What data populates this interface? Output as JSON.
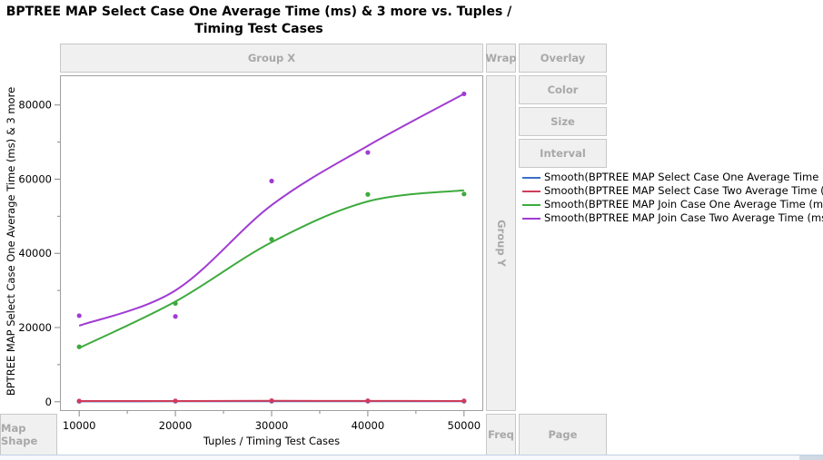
{
  "title": "BPTREE MAP Select Case One Average Time (ms)  & 3 more vs. Tuples / Timing Test Cases",
  "drop_zones": {
    "group_x": "Group X",
    "group_y": "Group Y",
    "wrap": "Wrap",
    "overlay": "Overlay",
    "color": "Color",
    "size": "Size",
    "interval": "Interval",
    "map_shape": "Map Shape",
    "freq": "Freq",
    "page": "Page"
  },
  "colors": {
    "select_one": "#3c6fc8",
    "select_two": "#d03c5a",
    "join_one": "#3caa3c",
    "join_two": "#a03cd2",
    "zone_bg": "#f0f0f0",
    "zone_text": "#a8a8a8"
  },
  "chart_data": {
    "type": "scatter",
    "title": "BPTREE MAP Select Case One Average Time (ms)  & 3 more vs. Tuples / Timing Test Cases",
    "xlabel": "Tuples / Timing Test Cases",
    "ylabel": "BPTREE MAP Select Case One Average Time (ms) & 3 more",
    "xlim": [
      8000,
      52000
    ],
    "ylim": [
      -2500,
      88000
    ],
    "x_ticks": [
      10000,
      20000,
      30000,
      40000,
      50000
    ],
    "x_tick_labels": [
      "10000",
      "20000",
      "30000",
      "40000",
      "50000"
    ],
    "y_ticks": [
      0,
      20000,
      40000,
      60000,
      80000
    ],
    "y_tick_labels": [
      "0",
      "20000",
      "40000",
      "60000",
      "80000"
    ],
    "grid": false,
    "legend_position": "right",
    "x": [
      10000,
      20000,
      30000,
      40000,
      50000
    ],
    "series": [
      {
        "name": "BPTREE MAP Select Case One Average Time (ms)",
        "legend": "Smooth(BPTREE MAP Select Case One Average Time (ms))",
        "color": "#3c6fc8",
        "points": [
          120,
          140,
          160,
          150,
          140
        ],
        "smooth": [
          100,
          120,
          140,
          130,
          120
        ]
      },
      {
        "name": "BPTREE MAP Select Case Two Average Time (ms)",
        "legend": "Smooth(BPTREE MAP Select Case Two Average Time (ms))",
        "color": "#d03c5a",
        "points": [
          200,
          220,
          280,
          250,
          230
        ],
        "smooth": [
          180,
          200,
          230,
          210,
          200
        ]
      },
      {
        "name": "BPTREE MAP Join Case One Average Time (ms)",
        "legend": "Smooth(BPTREE MAP Join Case One Average Time (ms))",
        "color": "#3caa3c",
        "points": [
          14800,
          26500,
          43800,
          55900,
          56000
        ],
        "smooth": [
          14500,
          27000,
          43000,
          54000,
          57000
        ]
      },
      {
        "name": "BPTREE MAP Join Case Two Average Time (ms)",
        "legend": "Smooth(BPTREE MAP Join Case Two Average Time (ms))",
        "color": "#a03cd2",
        "points": [
          23200,
          23000,
          59500,
          67200,
          83000
        ],
        "smooth": [
          20500,
          30000,
          53000,
          69000,
          83000
        ]
      }
    ]
  }
}
